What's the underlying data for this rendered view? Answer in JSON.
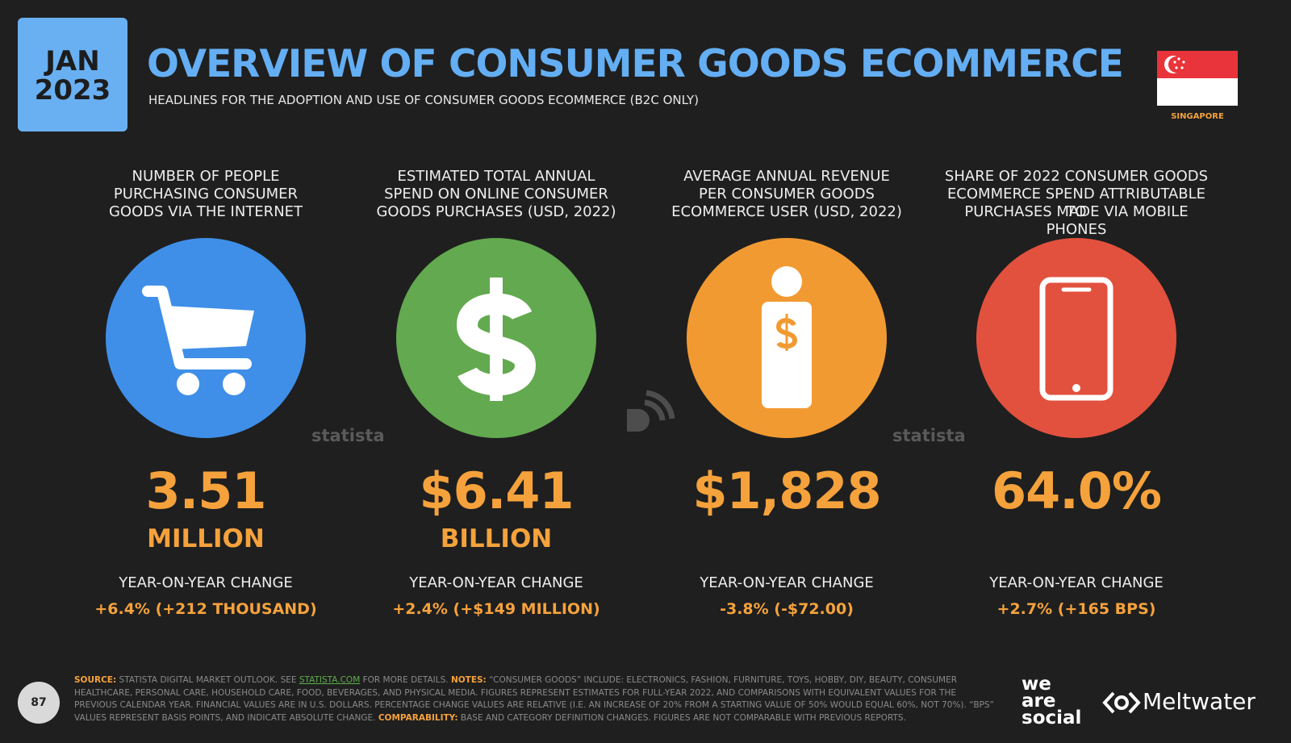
{
  "header": {
    "month": "JAN",
    "year": "2023",
    "title": "OVERVIEW OF CONSUMER GOODS ECOMMERCE",
    "subtitle": "HEADLINES FOR THE ADOPTION AND USE OF CONSUMER GOODS ECOMMERCE (B2C ONLY)",
    "country": "SINGAPORE"
  },
  "cards": [
    {
      "label_lines": [
        "NUMBER OF PEOPLE",
        "PURCHASING CONSUMER",
        "GOODS VIA THE INTERNET"
      ],
      "value": "3.51",
      "unit": "MILLION",
      "change_label": "YEAR-ON-YEAR CHANGE",
      "change": "+6.4% (+212 THOUSAND)"
    },
    {
      "label_lines": [
        "ESTIMATED TOTAL ANNUAL",
        "SPEND ON ONLINE CONSUMER",
        "GOODS PURCHASES (USD, 2022)"
      ],
      "value": "$6.41",
      "unit": "BILLION",
      "change_label": "YEAR-ON-YEAR CHANGE",
      "change": "+2.4% (+$149 MILLION)"
    },
    {
      "label_lines": [
        "AVERAGE ANNUAL REVENUE",
        "PER CONSUMER GOODS",
        "ECOMMERCE USER (USD, 2022)"
      ],
      "value": "$1,828",
      "change_label": "YEAR-ON-YEAR CHANGE",
      "change": "-3.8% (-$72.00)"
    },
    {
      "label_lines": [
        "SHARE OF 2022 CONSUMER GOODS",
        "ECOMMERCE SPEND ATTRIBUTABLE TO",
        "PURCHASES MADE VIA MOBILE PHONES"
      ],
      "value": "64.0%",
      "change_label": "YEAR-ON-YEAR CHANGE",
      "change": "+2.7% (+165 BPS)"
    }
  ],
  "watermarks": [
    "statista",
    "statista"
  ],
  "footer": {
    "page": "87",
    "source_label": "SOURCE:",
    "source_text": "STATISTA DIGITAL MARKET OUTLOOK. SEE",
    "source_link": "STATISTA.COM",
    "source_tail": "FOR MORE DETAILS.",
    "notes_label": "NOTES:",
    "notes_text": "“CONSUMER GOODS” INCLUDE: ELECTRONICS, FASHION, FURNITURE, TOYS, HOBBY, DIY, BEAUTY, CONSUMER HEALTHCARE, PERSONAL CARE, HOUSEHOLD CARE, FOOD, BEVERAGES, AND PHYSICAL MEDIA. FIGURES REPRESENT ESTIMATES FOR FULL-YEAR 2022, AND COMPARISONS WITH EQUIVALENT VALUES FOR THE PREVIOUS CALENDAR YEAR. FINANCIAL VALUES ARE IN U.S. DOLLARS. PERCENTAGE CHANGE VALUES ARE RELATIVE (I.E. AN INCREASE OF 20% FROM A STARTING VALUE OF 50% WOULD EQUAL 60%, NOT 70%). “BPS” VALUES REPRESENT BASIS POINTS, AND INDICATE ABSOLUTE CHANGE.",
    "comparability_label": "COMPARABILITY:",
    "comparability_text": "BASE AND CATEGORY DEFINITION CHANGES. FIGURES ARE NOT COMPARABLE WITH PREVIOUS REPORTS.",
    "logo_was": [
      "we",
      "are",
      "social"
    ],
    "logo_meltwater": "Meltwater"
  }
}
